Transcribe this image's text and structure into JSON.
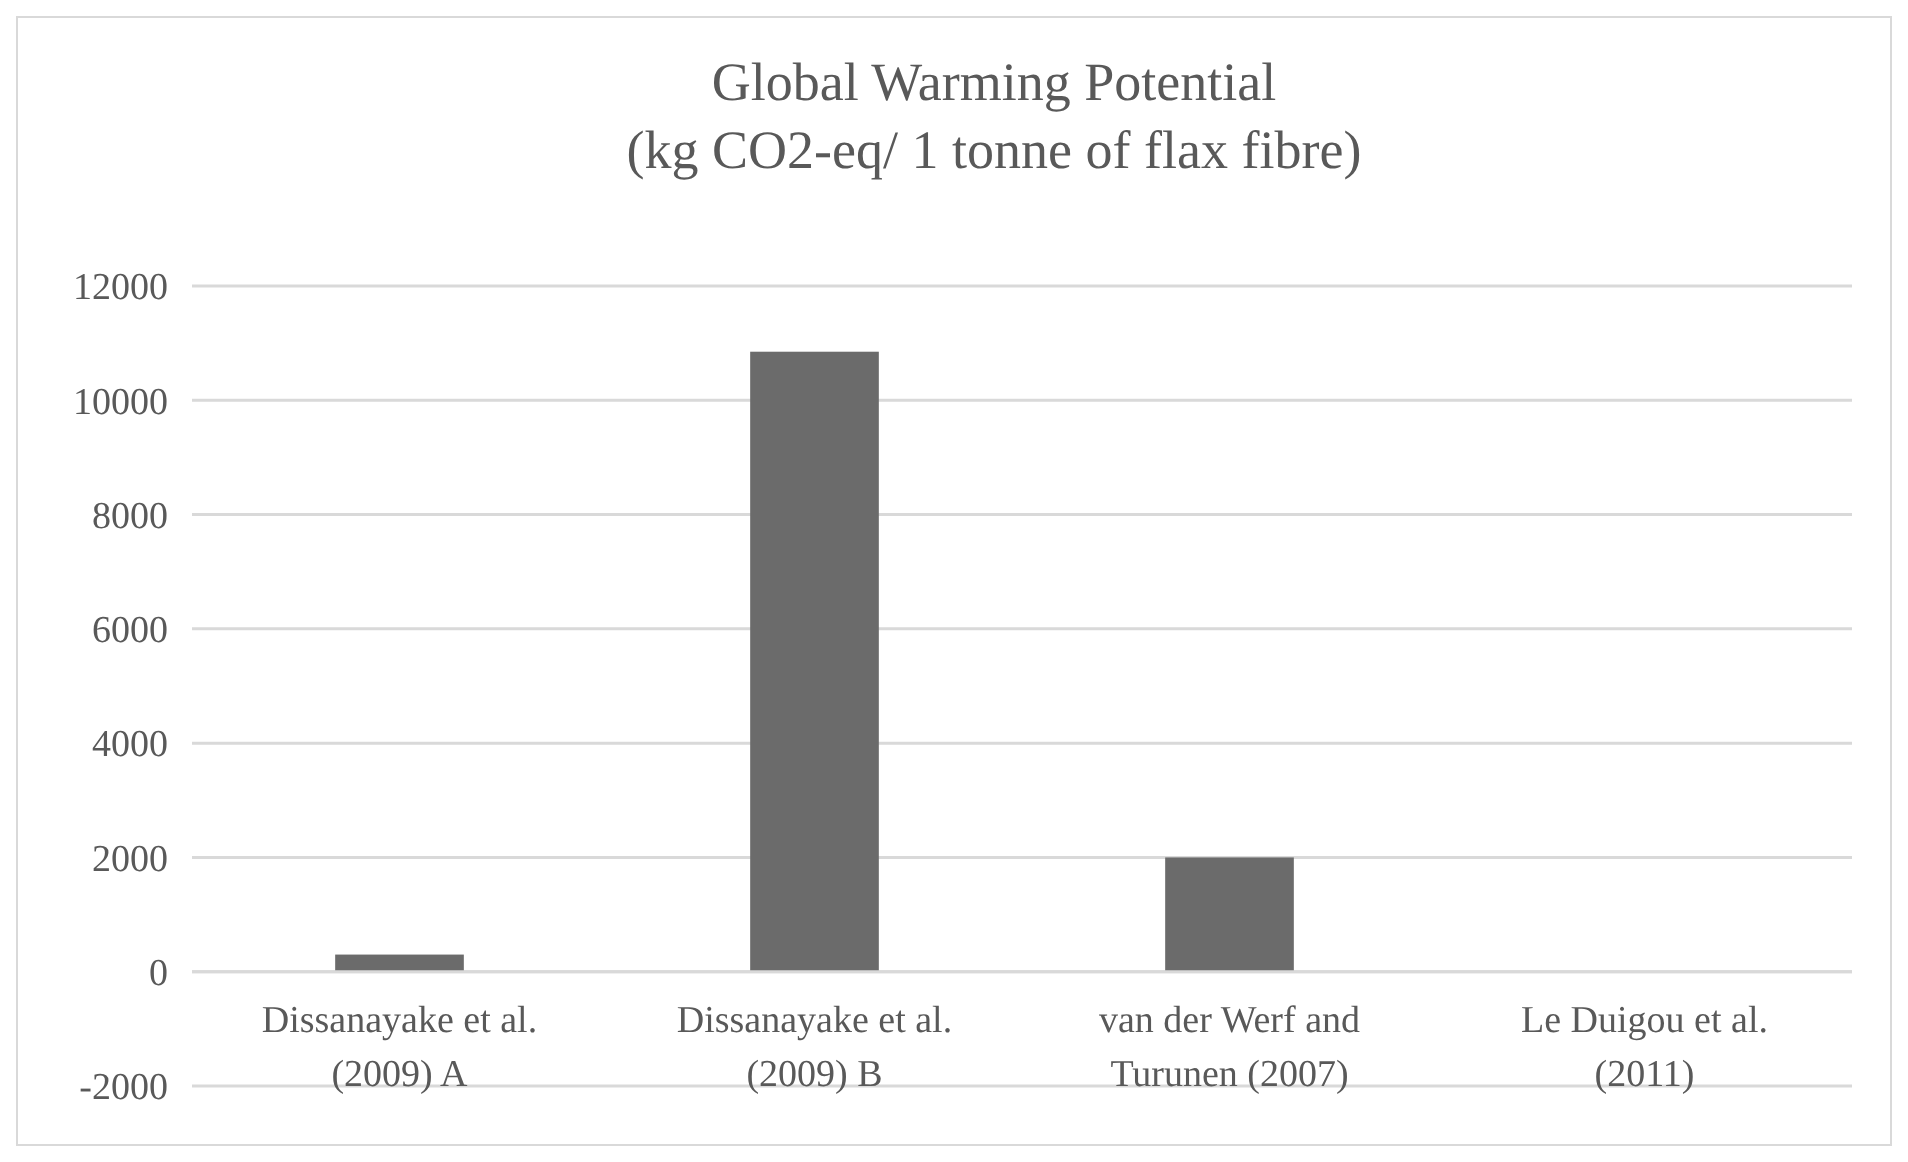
{
  "chart_data": {
    "type": "bar",
    "title": "Global Warming Potential\n(kg CO2-eq/ 1 tonne  of flax fibre)",
    "categories": [
      "Dissanayake et al.\n(2009) A",
      "Dissanayake et al.\n(2009) B",
      "van der Werf and\nTurunen (2007)",
      "Le Duigou et al.\n(2011)"
    ],
    "values": [
      300,
      10850,
      2000,
      0
    ],
    "color": "#6b6b6b",
    "ylim": [
      -2000,
      12000
    ],
    "yticks": [
      -2000,
      0,
      2000,
      4000,
      6000,
      8000,
      10000,
      12000
    ],
    "grid": "y"
  }
}
